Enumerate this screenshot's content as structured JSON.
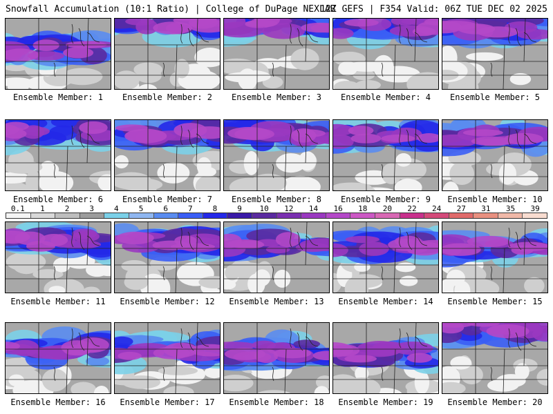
{
  "header": {
    "left": "Snowfall Accumulation (10:1 Ratio) | College of DuPage NEXLAB",
    "right": "12Z GEFS | F354 Valid: 06Z TUE DEC 02 2025"
  },
  "colorbar": {
    "labels": [
      "0.1",
      "1",
      "2",
      "3",
      "4",
      "5",
      "6",
      "7",
      "8",
      "9",
      "10",
      "12",
      "14",
      "16",
      "18",
      "20",
      "22",
      "24",
      "27",
      "31",
      "35",
      "39"
    ],
    "colors": [
      "#f4f4f4",
      "#d8d8d8",
      "#bdbdbd",
      "#9c9c9c",
      "#7bd0e8",
      "#8fb6f0",
      "#5a8cf0",
      "#3a5ef5",
      "#2428e8",
      "#3a1aa8",
      "#5a2aa0",
      "#7a2fb0",
      "#9a38c0",
      "#b448c8",
      "#cc58c4",
      "#d868b4",
      "#c8308c",
      "#d44a7a",
      "#e06a6a",
      "#e89080",
      "#f0b8a8",
      "#f8dcd0"
    ]
  },
  "members": [
    {
      "label": "Ensemble Member: 1"
    },
    {
      "label": "Ensemble Member: 2"
    },
    {
      "label": "Ensemble Member: 3"
    },
    {
      "label": "Ensemble Member: 4"
    },
    {
      "label": "Ensemble Member: 5"
    },
    {
      "label": "Ensemble Member: 6"
    },
    {
      "label": "Ensemble Member: 7"
    },
    {
      "label": "Ensemble Member: 8"
    },
    {
      "label": "Ensemble Member: 9"
    },
    {
      "label": "Ensemble Member: 10"
    },
    {
      "label": "Ensemble Member: 11"
    },
    {
      "label": "Ensemble Member: 12"
    },
    {
      "label": "Ensemble Member: 13"
    },
    {
      "label": "Ensemble Member: 14"
    },
    {
      "label": "Ensemble Member: 15"
    },
    {
      "label": "Ensemble Member: 16"
    },
    {
      "label": "Ensemble Member: 17"
    },
    {
      "label": "Ensemble Member: 18"
    },
    {
      "label": "Ensemble Member: 19"
    },
    {
      "label": "Ensemble Member: 20"
    }
  ]
}
